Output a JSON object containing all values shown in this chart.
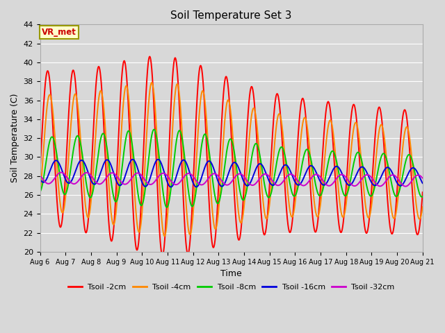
{
  "title": "Soil Temperature Set 3",
  "xlabel": "Time",
  "ylabel": "Soil Temperature (C)",
  "ylim": [
    20,
    44
  ],
  "xlim": [
    0,
    15
  ],
  "bg_color": "#d8d8d8",
  "annotation": "VR_met",
  "annotation_color": "#cc0000",
  "annotation_bg": "#ffffcc",
  "annotation_border": "#999900",
  "x_tick_labels": [
    "Aug 6",
    "Aug 7",
    "Aug 8",
    "Aug 9",
    "Aug 10",
    "Aug 11",
    "Aug 12",
    "Aug 13",
    "Aug 14",
    "Aug 15",
    "Aug 16",
    "Aug 17",
    "Aug 18",
    "Aug 19",
    "Aug 20",
    "Aug 21"
  ],
  "x_tick_positions": [
    0,
    1,
    2,
    3,
    4,
    5,
    6,
    7,
    8,
    9,
    10,
    11,
    12,
    13,
    14,
    15
  ],
  "gridcolor": "#ffffff",
  "linewidth": 1.4
}
